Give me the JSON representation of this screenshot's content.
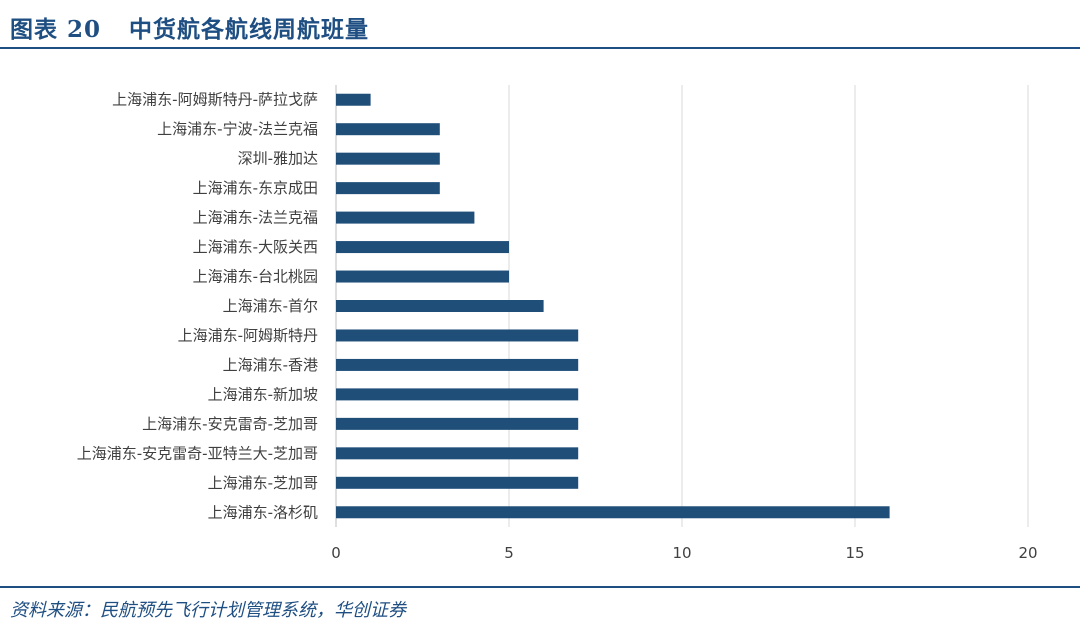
{
  "header": {
    "figure_label": "图表 20",
    "title": "中货航各航线周航班量"
  },
  "footer": {
    "source": "资料来源：民航预先飞行计划管理系统，华创证券"
  },
  "colors": {
    "bar": "#1f4e79",
    "accent": "#1f4f82",
    "grid": "#d9d9d9"
  },
  "chart_data": {
    "type": "bar",
    "orientation": "horizontal",
    "categories": [
      "上海浦东-阿姆斯特丹-萨拉戈萨",
      "上海浦东-宁波-法兰克福",
      "深圳-雅加达",
      "上海浦东-东京成田",
      "上海浦东-法兰克福",
      "上海浦东-大阪关西",
      "上海浦东-台北桃园",
      "上海浦东-首尔",
      "上海浦东-阿姆斯特丹",
      "上海浦东-香港",
      "上海浦东-新加坡",
      "上海浦东-安克雷奇-芝加哥",
      "上海浦东-安克雷奇-亚特兰大-芝加哥",
      "上海浦东-芝加哥",
      "上海浦东-洛杉矶"
    ],
    "values": [
      1,
      3,
      3,
      3,
      4,
      5,
      5,
      6,
      7,
      7,
      7,
      7,
      7,
      7,
      16
    ],
    "xlim": [
      0,
      20
    ],
    "xticks": [
      "0",
      "5",
      "10",
      "15",
      "20"
    ],
    "grid": "vertical"
  }
}
